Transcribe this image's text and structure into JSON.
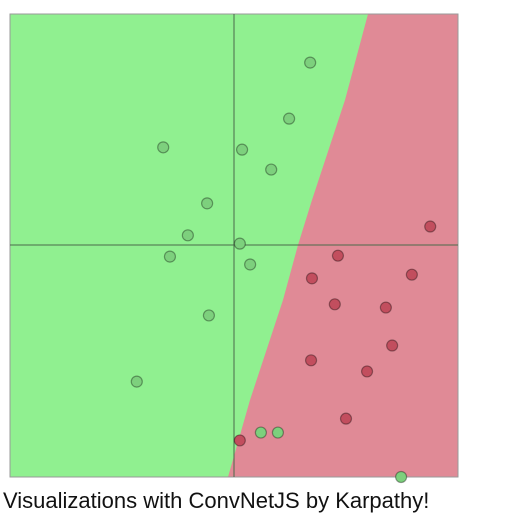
{
  "chart_data": {
    "type": "scatter",
    "title": "Visualizations with ConvNetJS by Karpathy!",
    "xlim": [
      -5,
      5
    ],
    "ylim": [
      -5,
      5
    ],
    "series": [
      {
        "color": "#7dd07d",
        "x": [
          1.7,
          -1.58,
          0.18,
          1.23,
          0.83,
          -0.6,
          -1.03,
          0.13,
          -1.43,
          0.36,
          -0.56,
          -2.17,
          0.6,
          0.98,
          3.73
        ],
        "y": [
          3.95,
          2.12,
          2.07,
          2.74,
          1.64,
          0.91,
          0.22,
          0.04,
          -0.24,
          -0.41,
          -1.51,
          -2.94,
          -4.04,
          -4.04,
          -5.0
        ]
      },
      {
        "color": "#c24e5e",
        "x": [
          4.38,
          2.32,
          1.74,
          3.97,
          2.25,
          3.39,
          3.53,
          1.72,
          2.97,
          2.5,
          0.13
        ],
        "y": [
          0.41,
          -0.22,
          -0.71,
          -0.63,
          -1.27,
          -1.34,
          -2.16,
          -2.48,
          -2.72,
          -3.74,
          -4.21
        ]
      }
    ]
  }
}
